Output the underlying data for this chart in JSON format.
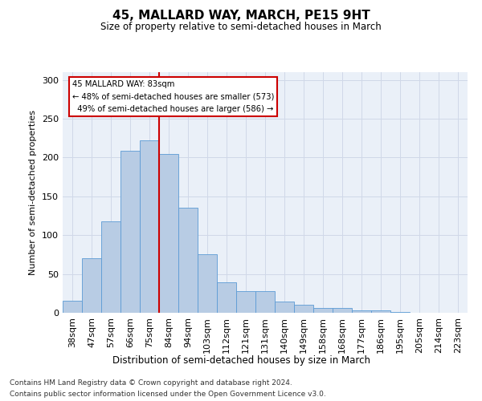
{
  "title": "45, MALLARD WAY, MARCH, PE15 9HT",
  "subtitle": "Size of property relative to semi-detached houses in March",
  "xlabel": "Distribution of semi-detached houses by size in March",
  "ylabel": "Number of semi-detached properties",
  "categories": [
    "38sqm",
    "47sqm",
    "57sqm",
    "66sqm",
    "75sqm",
    "84sqm",
    "94sqm",
    "103sqm",
    "112sqm",
    "121sqm",
    "131sqm",
    "140sqm",
    "149sqm",
    "158sqm",
    "168sqm",
    "177sqm",
    "186sqm",
    "195sqm",
    "205sqm",
    "214sqm",
    "223sqm"
  ],
  "values": [
    16,
    70,
    118,
    209,
    222,
    205,
    135,
    75,
    39,
    28,
    28,
    14,
    10,
    6,
    6,
    3,
    3,
    1,
    0,
    0,
    0
  ],
  "bar_color": "#b8cce4",
  "bar_edge_color": "#5b9bd5",
  "property_line_index": 5,
  "property_value": "83sqm",
  "pct_smaller": 48,
  "count_smaller": 573,
  "pct_larger": 49,
  "count_larger": 586,
  "annotation_box_color": "#ffffff",
  "annotation_box_edge": "#cc0000",
  "line_color": "#cc0000",
  "ylim": [
    0,
    310
  ],
  "yticks": [
    0,
    50,
    100,
    150,
    200,
    250,
    300
  ],
  "grid_color": "#d0d8e8",
  "background_color": "#eaf0f8",
  "footnote1": "Contains HM Land Registry data © Crown copyright and database right 2024.",
  "footnote2": "Contains public sector information licensed under the Open Government Licence v3.0."
}
